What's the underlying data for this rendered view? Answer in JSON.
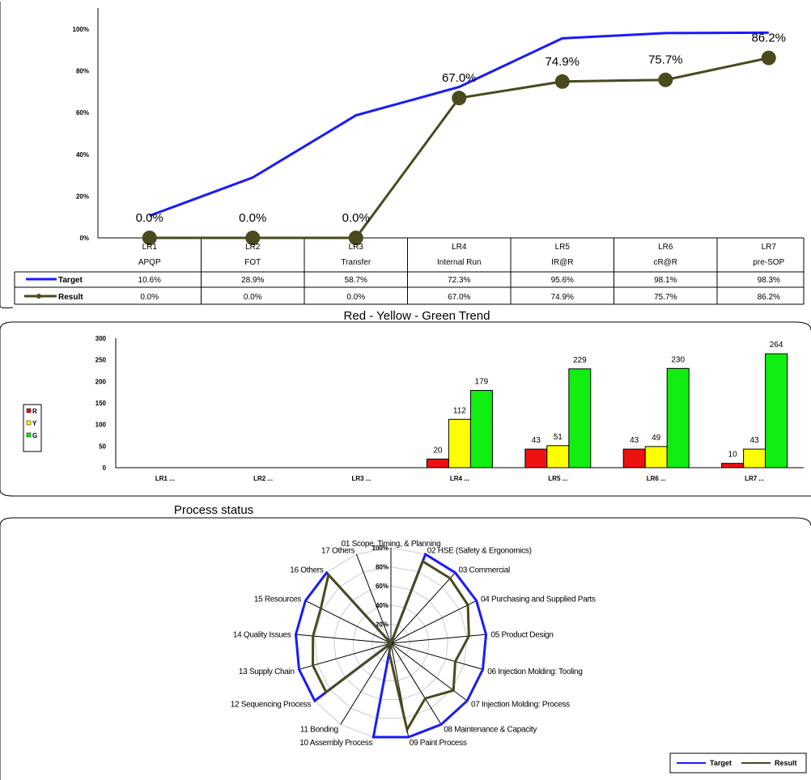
{
  "colors": {
    "target": "#1a1aff",
    "result": "#4a4a1e",
    "red": "#ee1111",
    "yellow": "#ffff00",
    "green": "#11ee11",
    "grid": "#cccccc"
  },
  "chart_data": [
    {
      "type": "line",
      "title": "",
      "y_ticks": [
        "0%",
        "20%",
        "40%",
        "60%",
        "80%",
        "100%"
      ],
      "ylim": [
        0,
        100
      ],
      "categories": [
        {
          "code": "LR1",
          "name": "APQP"
        },
        {
          "code": "LR2",
          "name": "FOT"
        },
        {
          "code": "LR3",
          "name": "Transfer"
        },
        {
          "code": "LR4",
          "name": "Internal Run"
        },
        {
          "code": "LR5",
          "name": "IR@R"
        },
        {
          "code": "LR6",
          "name": "cR@R"
        },
        {
          "code": "LR7",
          "name": "pre-SOP"
        }
      ],
      "series": [
        {
          "name": "Target",
          "values": [
            10.6,
            28.9,
            58.7,
            72.3,
            95.6,
            98.1,
            98.3
          ],
          "table_labels": [
            "10.6%",
            "28.9%",
            "58.7%",
            "72.3%",
            "95.6%",
            "98.1%",
            "98.3%"
          ]
        },
        {
          "name": "Result",
          "values": [
            0.0,
            0.0,
            0.0,
            67.0,
            74.9,
            75.7,
            86.2
          ],
          "table_labels": [
            "0.0%",
            "0.0%",
            "0.0%",
            "67.0%",
            "74.9%",
            "75.7%",
            "86.2%"
          ],
          "data_labels": [
            "0.0%",
            "0.0%",
            "0.0%",
            "67.0%",
            "74.9%",
            "75.7%",
            "86.2%"
          ]
        }
      ]
    },
    {
      "type": "bar",
      "title": "Red - Yellow - Green Trend",
      "y_ticks": [
        "0",
        "50",
        "100",
        "150",
        "200",
        "250",
        "300"
      ],
      "ylim": [
        0,
        300
      ],
      "categories": [
        "LR1 ...",
        "LR2 ...",
        "LR3 ...",
        "LR4 ...",
        "LR5 ...",
        "LR6 ...",
        "LR7 ..."
      ],
      "series": [
        {
          "name": "R",
          "values": [
            null,
            null,
            null,
            20,
            43,
            43,
            10
          ]
        },
        {
          "name": "Y",
          "values": [
            null,
            null,
            null,
            112,
            51,
            49,
            43
          ]
        },
        {
          "name": "G",
          "values": [
            null,
            null,
            null,
            179,
            229,
            230,
            264
          ]
        }
      ],
      "legend": "left"
    },
    {
      "type": "radar",
      "title": "Process status",
      "r_ticks": [
        "20%",
        "40%",
        "60%",
        "80%",
        "100%"
      ],
      "axes": [
        "01 Scope, Timing, & Planning",
        "02 HSE (Safety & Ergonomics)",
        "03 Commercial",
        "04 Purchasing and Supplied Parts",
        "05 Product Design",
        "06 Injection Molding:  Tooling",
        "07 Injection Molding:  Process",
        "08 Maintenance & Capacity",
        "09 Paint Process",
        "10 Assembly Process",
        "11 Bonding",
        "12 Sequencing Process",
        "13 Supply Chain",
        "14 Quality Issues",
        "15 Resources",
        "16 Others",
        "17 Others"
      ],
      "series": [
        {
          "name": "Target",
          "values": [
            0,
            100,
            100,
            100,
            100,
            100,
            100,
            100,
            100,
            100,
            0,
            100,
            100,
            100,
            100,
            100,
            0
          ]
        },
        {
          "name": "Result",
          "values": [
            0,
            92,
            92,
            90,
            82,
            70,
            82,
            68,
            92,
            10,
            0,
            85,
            85,
            82,
            82,
            97,
            0
          ]
        }
      ],
      "legend": "bottom-right"
    }
  ],
  "legend_bottom": {
    "target": "Target",
    "result": "Result"
  }
}
